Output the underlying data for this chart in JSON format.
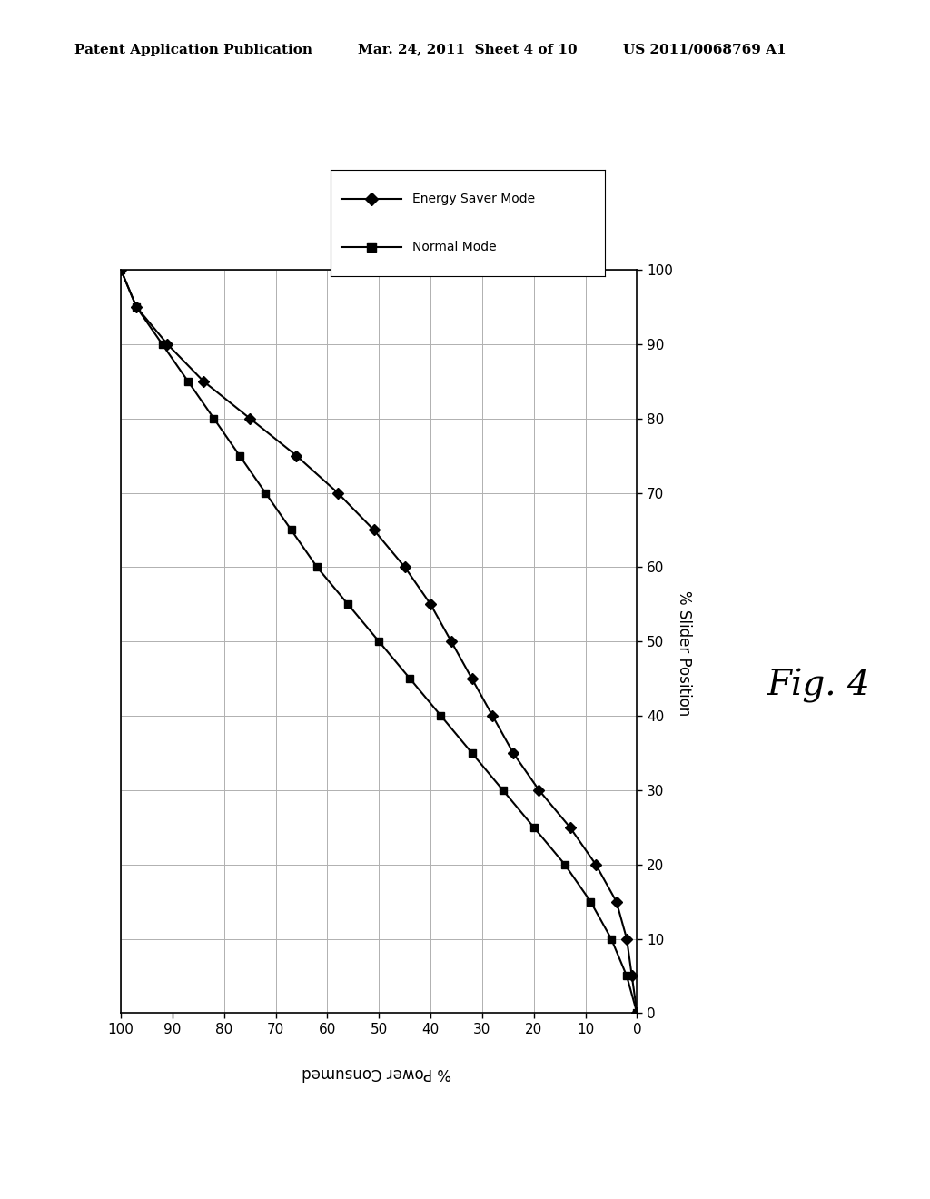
{
  "header_left": "Patent Application Publication",
  "header_mid": "Mar. 24, 2011  Sheet 4 of 10",
  "header_right": "US 2011/0068769 A1",
  "fig_label": "Fig. 4",
  "right_axis_label": "% Slider Position",
  "bottom_axis_label": "% Power Consumed",
  "legend_entries": [
    "Energy Saver Mode",
    "Normal Mode"
  ],
  "background_color": "#ffffff",
  "grid_color": "#b0b0b0",
  "ticks": [
    0,
    10,
    20,
    30,
    40,
    50,
    60,
    70,
    80,
    90,
    100
  ],
  "energy_saver_power": [
    100,
    97,
    91,
    84,
    75,
    66,
    58,
    51,
    45,
    40,
    36,
    32,
    28,
    24,
    19,
    13,
    8,
    4,
    2,
    1,
    0
  ],
  "energy_saver_slider": [
    100,
    95,
    90,
    85,
    80,
    75,
    70,
    65,
    60,
    55,
    50,
    45,
    40,
    35,
    30,
    25,
    20,
    15,
    10,
    5,
    0
  ],
  "normal_power": [
    100,
    97,
    92,
    87,
    82,
    77,
    72,
    67,
    62,
    56,
    50,
    44,
    38,
    32,
    26,
    20,
    14,
    9,
    5,
    2,
    0
  ],
  "normal_slider": [
    100,
    95,
    90,
    85,
    80,
    75,
    70,
    65,
    60,
    55,
    50,
    45,
    40,
    35,
    30,
    25,
    20,
    15,
    10,
    5,
    0
  ]
}
